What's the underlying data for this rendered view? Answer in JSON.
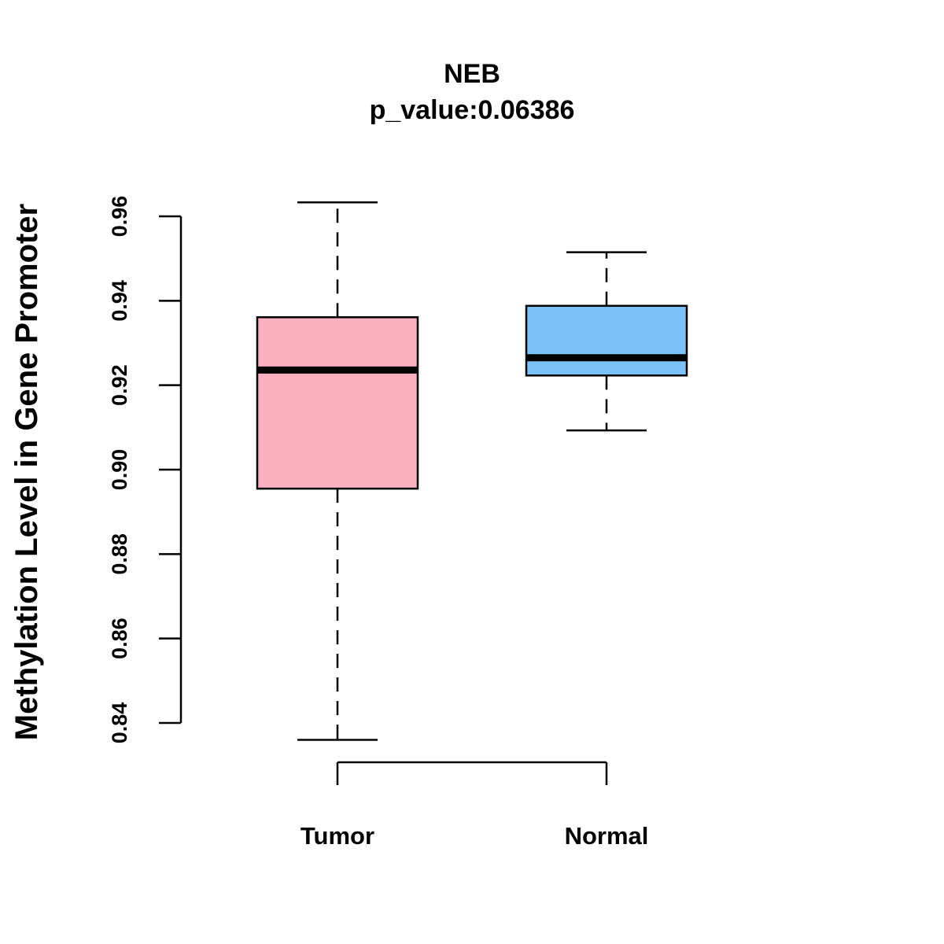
{
  "chart_data": {
    "type": "boxplot",
    "title": "NEB",
    "subtitle": "p_value:0.06386",
    "xlabel": "",
    "ylabel": "Methylation Level in Gene Promoter",
    "ylim": [
      0.84,
      0.96
    ],
    "yticks": [
      0.84,
      0.86,
      0.88,
      0.9,
      0.92,
      0.94,
      0.96
    ],
    "ytick_labels": [
      "0.84",
      "0.86",
      "0.88",
      "0.90",
      "0.92",
      "0.94",
      "0.96"
    ],
    "grid": false,
    "categories": [
      "Tumor",
      "Normal"
    ],
    "boxes": [
      {
        "name": "Tumor",
        "whisker_low": 0.836,
        "q1": 0.8955,
        "median": 0.9236,
        "q3": 0.9361,
        "whisker_high": 0.9633,
        "color": "#FBB0C0"
      },
      {
        "name": "Normal",
        "whisker_low": 0.9093,
        "q1": 0.9223,
        "median": 0.9265,
        "q3": 0.9388,
        "whisker_high": 0.9515,
        "color": "#7AC2F8"
      }
    ]
  }
}
